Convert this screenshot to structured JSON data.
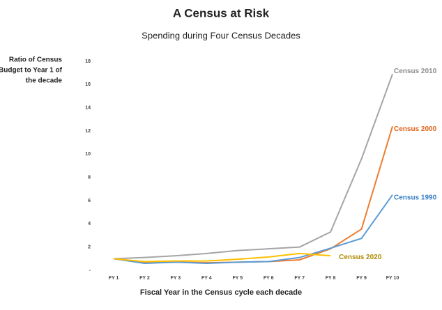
{
  "chart_data": {
    "type": "line",
    "title": "A Census at Risk",
    "subtitle": "Spending during Four Census Decades",
    "ylabel": [
      "Ratio of Census",
      "Budget to Year 1 of",
      "the decade"
    ],
    "xlabel": "Fiscal Year in the Census cycle each decade",
    "categories": [
      "FY 1",
      "FY 2",
      "FY 3",
      "FY 4",
      "FY 5",
      "FY 6",
      "FY 7",
      "FY 8",
      "FY 9",
      "FY 10"
    ],
    "series": [
      {
        "name": "Census 2010",
        "color": "#a5a5a5",
        "label_color": "#8c8c8c",
        "values": [
          1,
          1.1,
          1.25,
          1.45,
          1.7,
          1.85,
          2.0,
          3.3,
          9.6,
          16.9
        ]
      },
      {
        "name": "Census 2000",
        "color": "#ed7d31",
        "label_color": "#e0641a",
        "values": [
          1,
          0.65,
          0.7,
          0.65,
          0.7,
          0.75,
          0.9,
          1.85,
          3.55,
          12.4
        ]
      },
      {
        "name": "Census 1990",
        "color": "#5b9bd5",
        "label_color": "#3a7fc4",
        "values": [
          1,
          0.6,
          0.7,
          0.6,
          0.7,
          0.75,
          1.1,
          1.9,
          2.75,
          6.5
        ]
      },
      {
        "name": "Census 2020",
        "color": "#ffc000",
        "label_color": "#b08a00",
        "values": [
          1,
          0.75,
          0.8,
          0.8,
          0.95,
          1.15,
          1.45,
          1.25,
          null,
          null
        ]
      }
    ],
    "ylim": [
      0,
      18
    ],
    "yticks": [
      {
        "value": 0,
        "label": "-"
      },
      2,
      4,
      6,
      8,
      10,
      12,
      14,
      16,
      18
    ]
  }
}
